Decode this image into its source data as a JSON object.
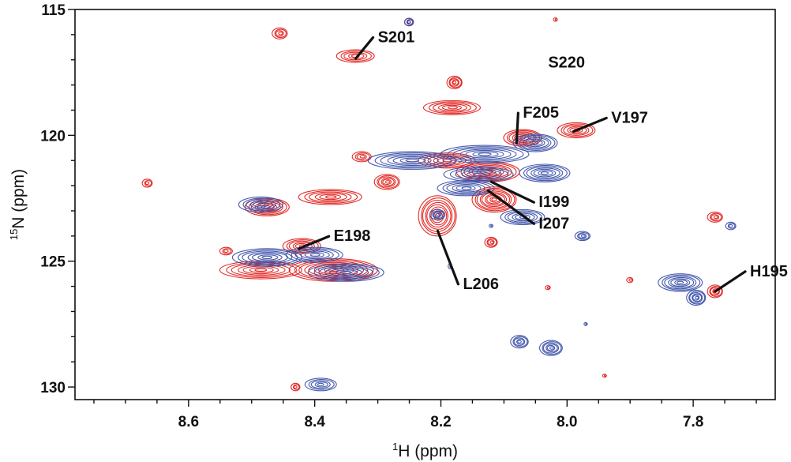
{
  "chart_data": {
    "type": "contour",
    "xlabel": {
      "superscript": "1",
      "text": "H (ppm)"
    },
    "ylabel": {
      "superscript": "15",
      "text": "N (ppm)"
    },
    "x_reversed": true,
    "y_reversed": true,
    "xlim": [
      8.78,
      7.67
    ],
    "ylim": [
      115.0,
      130.5
    ],
    "x_ticks": [
      "8.6",
      "8.4",
      "8.2",
      "8.0",
      "7.8"
    ],
    "y_ticks": [
      "115",
      "120",
      "125",
      "130"
    ],
    "grid": false,
    "colors": {
      "red_series": "#e0201b",
      "blue_series": "#3a4fa8"
    },
    "series": [
      {
        "color": "red",
        "peaks": [
          {
            "x": 8.455,
            "y": 115.95,
            "rx": 0.012,
            "ry": 0.22
          },
          {
            "x": 8.335,
            "y": 116.85,
            "rx": 0.03,
            "ry": 0.25
          },
          {
            "x": 8.25,
            "y": 115.5,
            "rx": 0.007,
            "ry": 0.15
          },
          {
            "x": 8.018,
            "y": 115.4,
            "rx": 0.003,
            "ry": 0.07
          },
          {
            "x": 8.178,
            "y": 117.9,
            "rx": 0.012,
            "ry": 0.25
          },
          {
            "x": 8.182,
            "y": 118.9,
            "rx": 0.045,
            "ry": 0.28
          },
          {
            "x": 8.07,
            "y": 120.1,
            "rx": 0.03,
            "ry": 0.33
          },
          {
            "x": 7.985,
            "y": 119.8,
            "rx": 0.03,
            "ry": 0.3
          },
          {
            "x": 8.665,
            "y": 121.9,
            "rx": 0.008,
            "ry": 0.16
          },
          {
            "x": 8.285,
            "y": 121.85,
            "rx": 0.02,
            "ry": 0.3
          },
          {
            "x": 8.375,
            "y": 122.45,
            "rx": 0.05,
            "ry": 0.3
          },
          {
            "x": 8.325,
            "y": 120.85,
            "rx": 0.015,
            "ry": 0.2
          },
          {
            "x": 8.19,
            "y": 121.0,
            "rx": 0.045,
            "ry": 0.3
          },
          {
            "x": 8.125,
            "y": 121.45,
            "rx": 0.05,
            "ry": 0.4
          },
          {
            "x": 8.115,
            "y": 122.55,
            "rx": 0.035,
            "ry": 0.5
          },
          {
            "x": 8.205,
            "y": 123.2,
            "rx": 0.03,
            "ry": 0.8
          },
          {
            "x": 8.12,
            "y": 124.25,
            "rx": 0.01,
            "ry": 0.2
          },
          {
            "x": 8.475,
            "y": 122.85,
            "rx": 0.035,
            "ry": 0.35
          },
          {
            "x": 8.42,
            "y": 124.4,
            "rx": 0.03,
            "ry": 0.3
          },
          {
            "x": 8.485,
            "y": 125.35,
            "rx": 0.065,
            "ry": 0.35
          },
          {
            "x": 8.37,
            "y": 125.35,
            "rx": 0.07,
            "ry": 0.45
          },
          {
            "x": 8.54,
            "y": 124.6,
            "rx": 0.01,
            "ry": 0.15
          },
          {
            "x": 7.765,
            "y": 123.25,
            "rx": 0.012,
            "ry": 0.2
          },
          {
            "x": 7.765,
            "y": 126.2,
            "rx": 0.012,
            "ry": 0.25
          },
          {
            "x": 7.9,
            "y": 125.75,
            "rx": 0.005,
            "ry": 0.1
          },
          {
            "x": 8.43,
            "y": 130.0,
            "rx": 0.007,
            "ry": 0.15
          },
          {
            "x": 8.03,
            "y": 126.05,
            "rx": 0.004,
            "ry": 0.08
          },
          {
            "x": 7.94,
            "y": 129.55,
            "rx": 0.003,
            "ry": 0.06
          }
        ]
      },
      {
        "color": "blue",
        "peaks": [
          {
            "x": 8.25,
            "y": 115.5,
            "rx": 0.007,
            "ry": 0.15
          },
          {
            "x": 8.245,
            "y": 121.0,
            "rx": 0.07,
            "ry": 0.35
          },
          {
            "x": 8.13,
            "y": 120.75,
            "rx": 0.07,
            "ry": 0.35
          },
          {
            "x": 8.14,
            "y": 121.55,
            "rx": 0.055,
            "ry": 0.3
          },
          {
            "x": 8.05,
            "y": 120.3,
            "rx": 0.035,
            "ry": 0.35
          },
          {
            "x": 8.035,
            "y": 121.5,
            "rx": 0.04,
            "ry": 0.35
          },
          {
            "x": 8.16,
            "y": 122.1,
            "rx": 0.045,
            "ry": 0.3
          },
          {
            "x": 8.07,
            "y": 123.25,
            "rx": 0.035,
            "ry": 0.3
          },
          {
            "x": 8.205,
            "y": 123.15,
            "rx": 0.012,
            "ry": 0.2
          },
          {
            "x": 8.485,
            "y": 122.75,
            "rx": 0.035,
            "ry": 0.3
          },
          {
            "x": 8.475,
            "y": 124.85,
            "rx": 0.055,
            "ry": 0.35
          },
          {
            "x": 8.4,
            "y": 124.75,
            "rx": 0.045,
            "ry": 0.3
          },
          {
            "x": 8.35,
            "y": 125.45,
            "rx": 0.06,
            "ry": 0.35
          },
          {
            "x": 7.975,
            "y": 124.0,
            "rx": 0.012,
            "ry": 0.18
          },
          {
            "x": 7.82,
            "y": 125.85,
            "rx": 0.035,
            "ry": 0.35
          },
          {
            "x": 7.795,
            "y": 126.45,
            "rx": 0.015,
            "ry": 0.3
          },
          {
            "x": 7.74,
            "y": 123.6,
            "rx": 0.008,
            "ry": 0.15
          },
          {
            "x": 8.075,
            "y": 128.2,
            "rx": 0.014,
            "ry": 0.25
          },
          {
            "x": 8.025,
            "y": 128.45,
            "rx": 0.018,
            "ry": 0.3
          },
          {
            "x": 8.39,
            "y": 129.9,
            "rx": 0.025,
            "ry": 0.25
          },
          {
            "x": 8.185,
            "y": 125.2,
            "rx": 0.003,
            "ry": 0.1
          },
          {
            "x": 7.97,
            "y": 127.5,
            "rx": 0.002,
            "ry": 0.06
          },
          {
            "x": 8.12,
            "y": 123.6,
            "rx": 0.003,
            "ry": 0.06
          }
        ]
      }
    ],
    "annotations": [
      {
        "label": "S201",
        "peak_x": 8.335,
        "peak_y": 116.95,
        "text_x": 8.3,
        "text_y": 116.3
      },
      {
        "label": "S220",
        "peak_x": null,
        "peak_y": null,
        "text_x": 8.03,
        "text_y": 117.3
      },
      {
        "label": "F205",
        "peak_x": 8.08,
        "peak_y": 120.3,
        "text_x": 8.07,
        "text_y": 119.3
      },
      {
        "label": "V197",
        "peak_x": 7.99,
        "peak_y": 119.85,
        "text_x": 7.93,
        "text_y": 119.5
      },
      {
        "label": "I199",
        "peak_x": 8.12,
        "peak_y": 121.85,
        "text_x": 8.045,
        "text_y": 122.85
      },
      {
        "label": "I207",
        "peak_x": 8.125,
        "peak_y": 122.2,
        "text_x": 8.045,
        "text_y": 123.7
      },
      {
        "label": "E198",
        "peak_x": 8.425,
        "peak_y": 124.5,
        "text_x": 8.37,
        "text_y": 124.2
      },
      {
        "label": "L206",
        "peak_x": 8.205,
        "peak_y": 123.8,
        "text_x": 8.165,
        "text_y": 126.1
      },
      {
        "label": "H195",
        "peak_x": 7.765,
        "peak_y": 126.2,
        "text_x": 7.71,
        "text_y": 125.6
      }
    ]
  }
}
